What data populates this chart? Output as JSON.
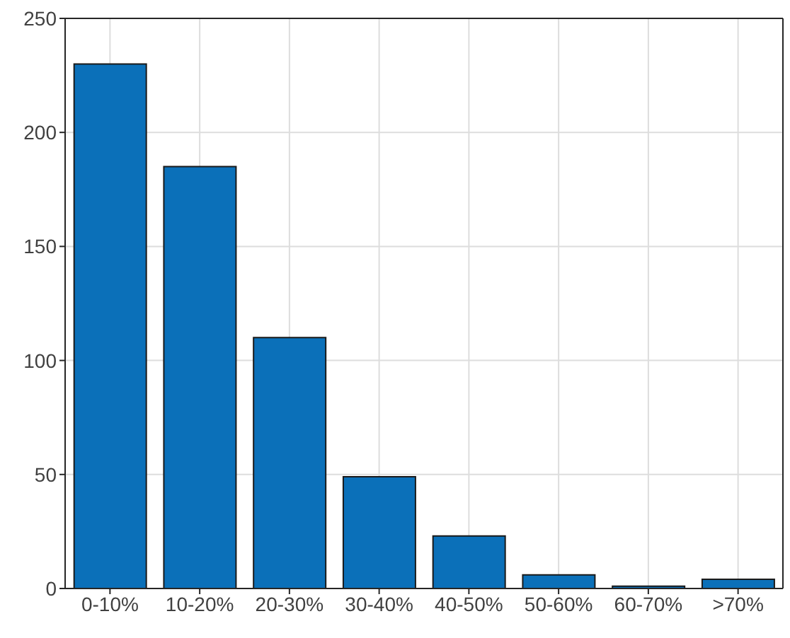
{
  "chart_data": {
    "type": "bar",
    "categories": [
      "0-10%",
      "10-20%",
      "20-30%",
      "30-40%",
      "40-50%",
      "50-60%",
      "60-70%",
      ">70%"
    ],
    "values": [
      230,
      185,
      110,
      49,
      23,
      6,
      1,
      4
    ],
    "color": "#0b70b9",
    "ylim": [
      0,
      250
    ],
    "yticks": [
      0,
      50,
      100,
      150,
      200,
      250
    ],
    "grid": true
  }
}
